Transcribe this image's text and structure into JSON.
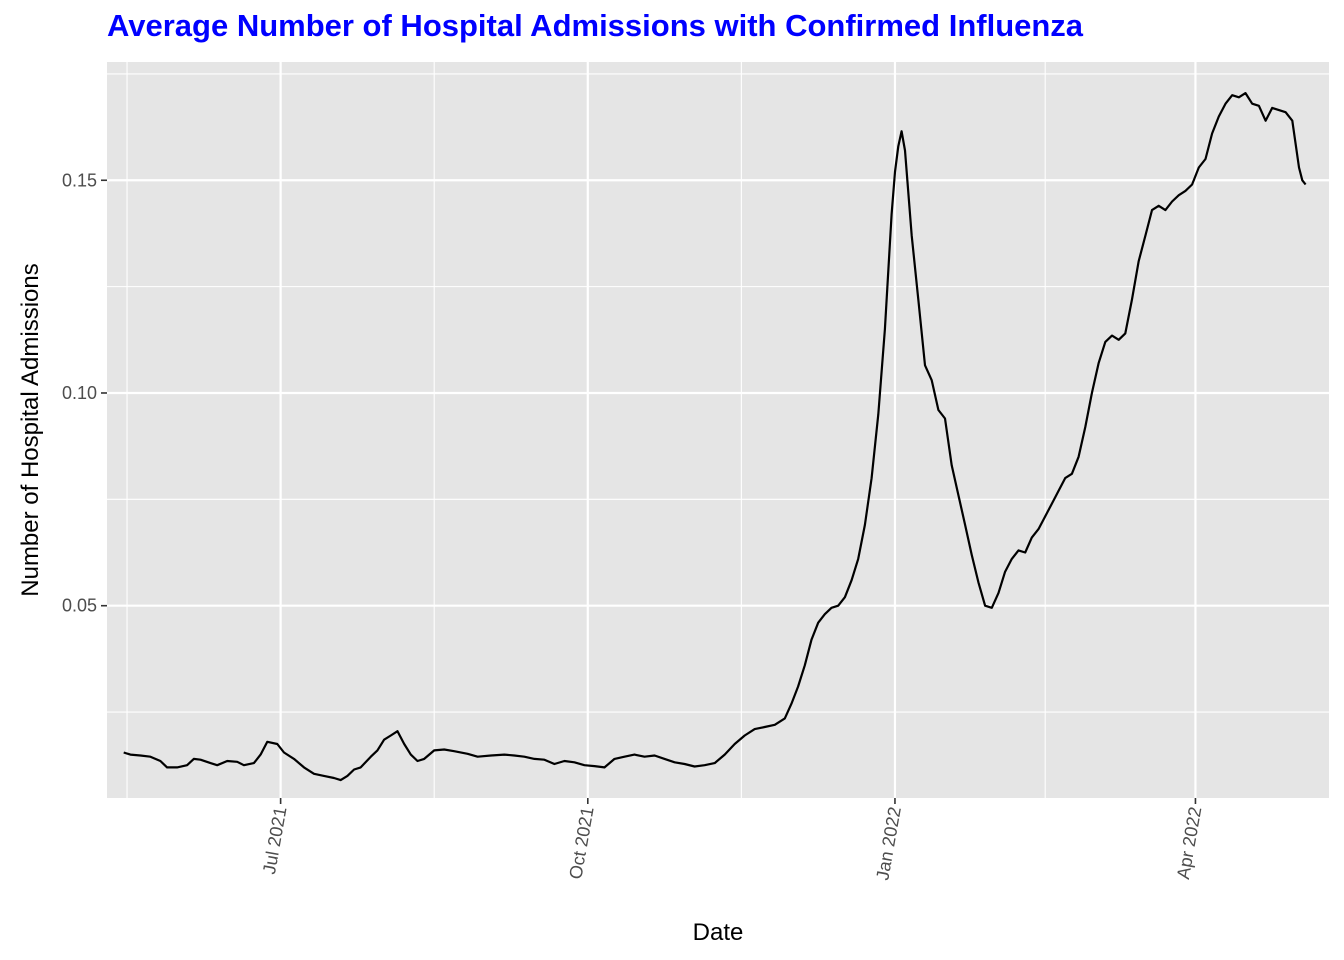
{
  "chart_data": {
    "type": "line",
    "title": "Average Number of Hospital Admissions with Confirmed Influenza",
    "xlabel": "Date",
    "ylabel": "Number of Hospital Admissions",
    "x_type": "date",
    "xlim": [
      "2021-05-10",
      "2022-05-11"
    ],
    "ylim": [
      0.0048,
      0.1778
    ],
    "x_ticks": [
      {
        "date": "2021-07-01",
        "label": "Jul 2021"
      },
      {
        "date": "2021-10-01",
        "label": "Oct 2021"
      },
      {
        "date": "2022-01-01",
        "label": "Jan 2022"
      },
      {
        "date": "2022-04-01",
        "label": "Apr 2022"
      }
    ],
    "y_ticks": [
      {
        "value": 0.05,
        "label": "0.05"
      },
      {
        "value": 0.1,
        "label": "0.10"
      },
      {
        "value": 0.15,
        "label": "0.15"
      }
    ],
    "grid": true,
    "series": [
      {
        "color": "#000000",
        "points": [
          [
            "2021-05-15",
            0.0155
          ],
          [
            "2021-05-17",
            0.015
          ],
          [
            "2021-05-20",
            0.0148
          ],
          [
            "2021-05-23",
            0.0145
          ],
          [
            "2021-05-26",
            0.0135
          ],
          [
            "2021-05-28",
            0.012
          ],
          [
            "2021-05-31",
            0.012
          ],
          [
            "2021-06-03",
            0.0125
          ],
          [
            "2021-06-05",
            0.014
          ],
          [
            "2021-06-07",
            0.0138
          ],
          [
            "2021-06-10",
            0.013
          ],
          [
            "2021-06-12",
            0.0125
          ],
          [
            "2021-06-15",
            0.0135
          ],
          [
            "2021-06-18",
            0.0133
          ],
          [
            "2021-06-20",
            0.0125
          ],
          [
            "2021-06-23",
            0.013
          ],
          [
            "2021-06-25",
            0.015
          ],
          [
            "2021-06-27",
            0.018
          ],
          [
            "2021-06-30",
            0.0175
          ],
          [
            "2021-07-02",
            0.0155
          ],
          [
            "2021-07-05",
            0.014
          ],
          [
            "2021-07-08",
            0.012
          ],
          [
            "2021-07-11",
            0.0105
          ],
          [
            "2021-07-14",
            0.01
          ],
          [
            "2021-07-17",
            0.0095
          ],
          [
            "2021-07-19",
            0.009
          ],
          [
            "2021-07-21",
            0.01
          ],
          [
            "2021-07-23",
            0.0115
          ],
          [
            "2021-07-25",
            0.012
          ],
          [
            "2021-07-28",
            0.0145
          ],
          [
            "2021-07-30",
            0.016
          ],
          [
            "2021-08-01",
            0.0185
          ],
          [
            "2021-08-03",
            0.0195
          ],
          [
            "2021-08-05",
            0.0205
          ],
          [
            "2021-08-07",
            0.0175
          ],
          [
            "2021-08-09",
            0.015
          ],
          [
            "2021-08-11",
            0.0135
          ],
          [
            "2021-08-13",
            0.014
          ],
          [
            "2021-08-16",
            0.016
          ],
          [
            "2021-08-19",
            0.0162
          ],
          [
            "2021-08-22",
            0.0158
          ],
          [
            "2021-08-26",
            0.0152
          ],
          [
            "2021-08-29",
            0.0145
          ],
          [
            "2021-09-02",
            0.0148
          ],
          [
            "2021-09-06",
            0.015
          ],
          [
            "2021-09-09",
            0.0148
          ],
          [
            "2021-09-12",
            0.0145
          ],
          [
            "2021-09-15",
            0.014
          ],
          [
            "2021-09-18",
            0.0138
          ],
          [
            "2021-09-21",
            0.0128
          ],
          [
            "2021-09-24",
            0.0135
          ],
          [
            "2021-09-27",
            0.0132
          ],
          [
            "2021-09-30",
            0.0125
          ],
          [
            "2021-10-03",
            0.0123
          ],
          [
            "2021-10-06",
            0.012
          ],
          [
            "2021-10-09",
            0.014
          ],
          [
            "2021-10-12",
            0.0145
          ],
          [
            "2021-10-15",
            0.015
          ],
          [
            "2021-10-18",
            0.0145
          ],
          [
            "2021-10-21",
            0.0148
          ],
          [
            "2021-10-24",
            0.014
          ],
          [
            "2021-10-27",
            0.0132
          ],
          [
            "2021-10-30",
            0.0128
          ],
          [
            "2021-11-02",
            0.0122
          ],
          [
            "2021-11-05",
            0.0125
          ],
          [
            "2021-11-08",
            0.013
          ],
          [
            "2021-11-11",
            0.015
          ],
          [
            "2021-11-14",
            0.0175
          ],
          [
            "2021-11-17",
            0.0195
          ],
          [
            "2021-11-20",
            0.021
          ],
          [
            "2021-11-23",
            0.0215
          ],
          [
            "2021-11-26",
            0.022
          ],
          [
            "2021-11-29",
            0.0235
          ],
          [
            "2021-12-01",
            0.027
          ],
          [
            "2021-12-03",
            0.031
          ],
          [
            "2021-12-05",
            0.036
          ],
          [
            "2021-12-07",
            0.042
          ],
          [
            "2021-12-09",
            0.046
          ],
          [
            "2021-12-11",
            0.048
          ],
          [
            "2021-12-13",
            0.0495
          ],
          [
            "2021-12-15",
            0.05
          ],
          [
            "2021-12-17",
            0.052
          ],
          [
            "2021-12-19",
            0.056
          ],
          [
            "2021-12-21",
            0.061
          ],
          [
            "2021-12-23",
            0.069
          ],
          [
            "2021-12-25",
            0.08
          ],
          [
            "2021-12-27",
            0.095
          ],
          [
            "2021-12-29",
            0.115
          ],
          [
            "2021-12-31",
            0.142
          ],
          [
            "2022-01-01",
            0.152
          ],
          [
            "2022-01-02",
            0.158
          ],
          [
            "2022-01-03",
            0.1615
          ],
          [
            "2022-01-04",
            0.157
          ],
          [
            "2022-01-06",
            0.137
          ],
          [
            "2022-01-08",
            0.122
          ],
          [
            "2022-01-10",
            0.1065
          ],
          [
            "2022-01-12",
            0.103
          ],
          [
            "2022-01-14",
            0.096
          ],
          [
            "2022-01-16",
            0.094
          ],
          [
            "2022-01-18",
            0.083
          ],
          [
            "2022-01-20",
            0.076
          ],
          [
            "2022-01-22",
            0.069
          ],
          [
            "2022-01-24",
            0.062
          ],
          [
            "2022-01-26",
            0.0555
          ],
          [
            "2022-01-28",
            0.05
          ],
          [
            "2022-01-30",
            0.0495
          ],
          [
            "2022-02-01",
            0.053
          ],
          [
            "2022-02-03",
            0.058
          ],
          [
            "2022-02-05",
            0.061
          ],
          [
            "2022-02-07",
            0.063
          ],
          [
            "2022-02-09",
            0.0625
          ],
          [
            "2022-02-11",
            0.066
          ],
          [
            "2022-02-13",
            0.068
          ],
          [
            "2022-02-15",
            0.071
          ],
          [
            "2022-02-17",
            0.074
          ],
          [
            "2022-02-19",
            0.077
          ],
          [
            "2022-02-21",
            0.08
          ],
          [
            "2022-02-23",
            0.081
          ],
          [
            "2022-02-25",
            0.085
          ],
          [
            "2022-02-27",
            0.092
          ],
          [
            "2022-03-01",
            0.1
          ],
          [
            "2022-03-03",
            0.107
          ],
          [
            "2022-03-05",
            0.112
          ],
          [
            "2022-03-07",
            0.1135
          ],
          [
            "2022-03-09",
            0.1125
          ],
          [
            "2022-03-11",
            0.114
          ],
          [
            "2022-03-13",
            0.122
          ],
          [
            "2022-03-15",
            0.131
          ],
          [
            "2022-03-17",
            0.137
          ],
          [
            "2022-03-19",
            0.143
          ],
          [
            "2022-03-21",
            0.144
          ],
          [
            "2022-03-23",
            0.143
          ],
          [
            "2022-03-25",
            0.145
          ],
          [
            "2022-03-27",
            0.1465
          ],
          [
            "2022-03-29",
            0.1475
          ],
          [
            "2022-03-31",
            0.149
          ],
          [
            "2022-04-02",
            0.153
          ],
          [
            "2022-04-04",
            0.155
          ],
          [
            "2022-04-06",
            0.161
          ],
          [
            "2022-04-08",
            0.165
          ],
          [
            "2022-04-10",
            0.168
          ],
          [
            "2022-04-12",
            0.17
          ],
          [
            "2022-04-14",
            0.1695
          ],
          [
            "2022-04-16",
            0.1705
          ],
          [
            "2022-04-18",
            0.168
          ],
          [
            "2022-04-20",
            0.1675
          ],
          [
            "2022-04-22",
            0.164
          ],
          [
            "2022-04-24",
            0.167
          ],
          [
            "2022-04-26",
            0.1665
          ],
          [
            "2022-04-28",
            0.166
          ],
          [
            "2022-04-30",
            0.164
          ],
          [
            "2022-05-02",
            0.153
          ],
          [
            "2022-05-03",
            0.15
          ],
          [
            "2022-05-04",
            0.149
          ]
        ]
      }
    ]
  }
}
